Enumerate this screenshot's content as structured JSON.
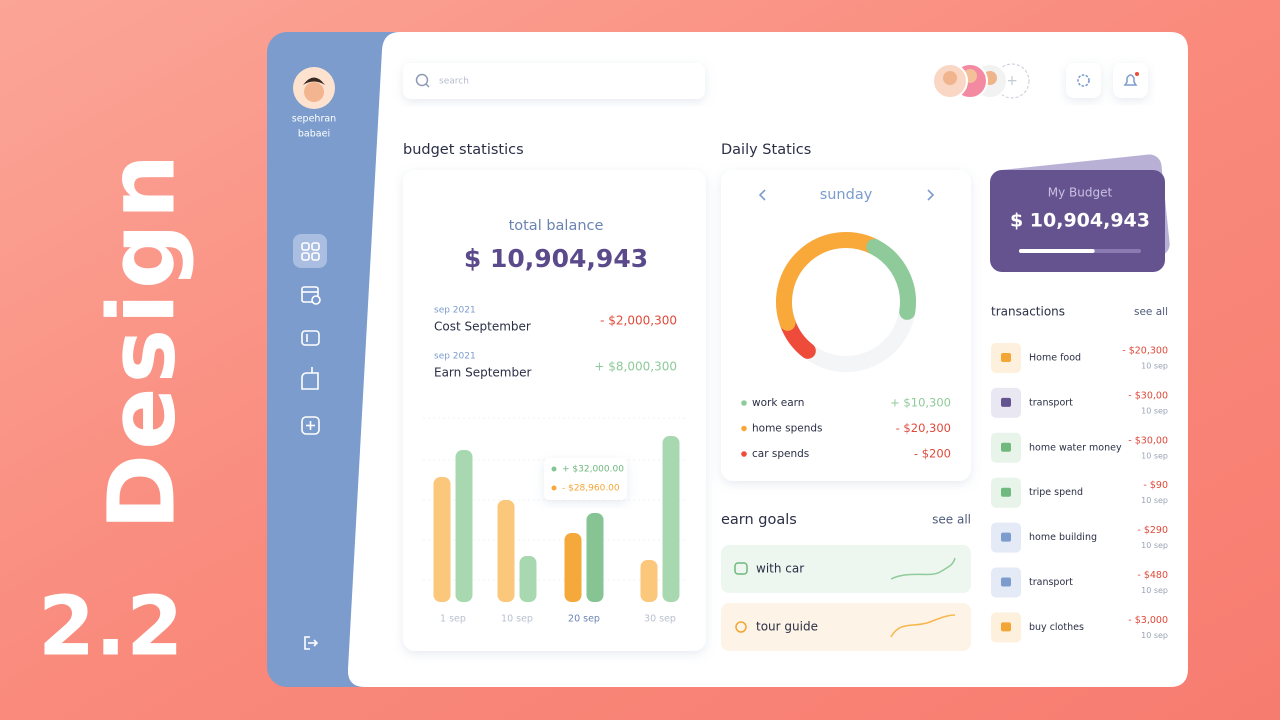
{
  "side_title": "Design",
  "version": "2.2",
  "user": {
    "name_line1": "sepehran",
    "name_line2": "babaei"
  },
  "search_placeholder": "search",
  "budget_statistics": {
    "title": "budget statistics",
    "total_label": "total balance",
    "total": "$ 10,904,943",
    "items": [
      {
        "period": "sep 2021",
        "label": "Cost September",
        "amount": "- $2,000,300"
      },
      {
        "period": "sep 2021",
        "label": "Earn September",
        "amount": "+ $8,000,300"
      }
    ],
    "chart": {
      "categories": [
        "1 sep",
        "10 sep",
        "20 sep",
        "30 sep"
      ],
      "active_category": "20 sep",
      "ylim": [
        0,
        170
      ],
      "series": [
        {
          "color": "#fbc77a",
          "active_color": "#f6a93b",
          "values": [
            125,
            102,
            69,
            42
          ]
        },
        {
          "color": "#a8d8b0",
          "active_color": "#86c493",
          "values": [
            152,
            46,
            89,
            166
          ]
        }
      ],
      "tooltip": [
        "+ $32,000.00",
        "- $28,960.00"
      ]
    }
  },
  "daily_statics": {
    "title": "Daily Statics",
    "day": "sunday",
    "items": [
      {
        "label": "work earn",
        "amount": "+ $10,300",
        "color": "#8fca9a",
        "share": 20
      },
      {
        "label": "home spends",
        "amount": "- $20,300",
        "color": "#f8a93a",
        "share": 38
      },
      {
        "label": "car spends",
        "amount": "- $200",
        "color": "#ee4b3b",
        "share": 9
      }
    ]
  },
  "earn_goals": {
    "title": "earn goals",
    "link": "see all",
    "goals": [
      {
        "label": "with car"
      },
      {
        "label": "tour guide"
      }
    ]
  },
  "my_budget": {
    "title": "My Budget",
    "amount": "$ 10,904,943",
    "progress": 62
  },
  "transactions": {
    "title": "transactions",
    "link": "see all",
    "items": [
      {
        "name": "Home food",
        "amount": "- $20,300",
        "date": "10 sep"
      },
      {
        "name": "transport",
        "amount": "- $30,00",
        "date": "10 sep"
      },
      {
        "name": "home water money",
        "amount": "- $30,00",
        "date": "10 sep"
      },
      {
        "name": "tripe spend",
        "amount": "- $90",
        "date": "10 sep"
      },
      {
        "name": "home building",
        "amount": "- $290",
        "date": "10 sep"
      },
      {
        "name": "transport",
        "amount": "- $480",
        "date": "10 sep"
      },
      {
        "name": "buy clothes",
        "amount": "- $3,000",
        "date": "10 sep"
      }
    ]
  }
}
